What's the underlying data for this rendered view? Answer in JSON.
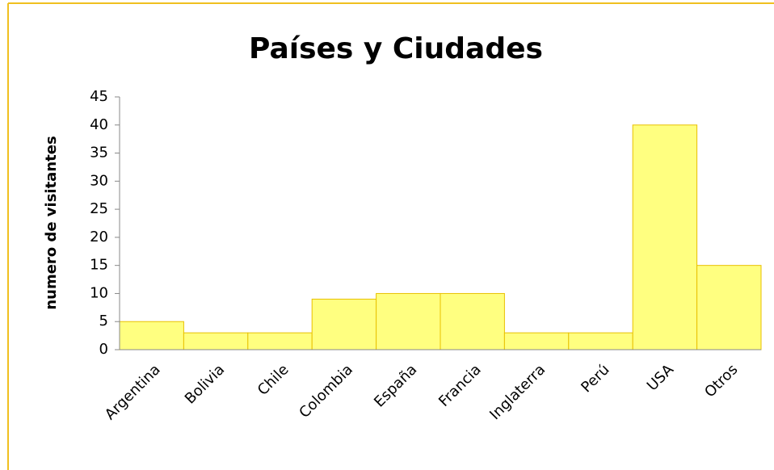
{
  "chart_data": {
    "type": "bar",
    "title": "Países y Ciudades",
    "y_label": "numero de visitantes",
    "categories": [
      "Argentina",
      "Bolivia",
      "Chile",
      "Colombia",
      "España",
      "Francia",
      "Inglaterra",
      "Perú",
      "USA",
      "Otros"
    ],
    "values": [
      5,
      3,
      3,
      9,
      10,
      10,
      3,
      3,
      40,
      15
    ],
    "color": "#ffff80",
    "edge_color": "#e8c000",
    "ylim": [
      0,
      45
    ],
    "yticks": [
      0,
      5,
      10,
      15,
      20,
      25,
      30,
      35,
      40,
      45
    ],
    "grid": false
  }
}
